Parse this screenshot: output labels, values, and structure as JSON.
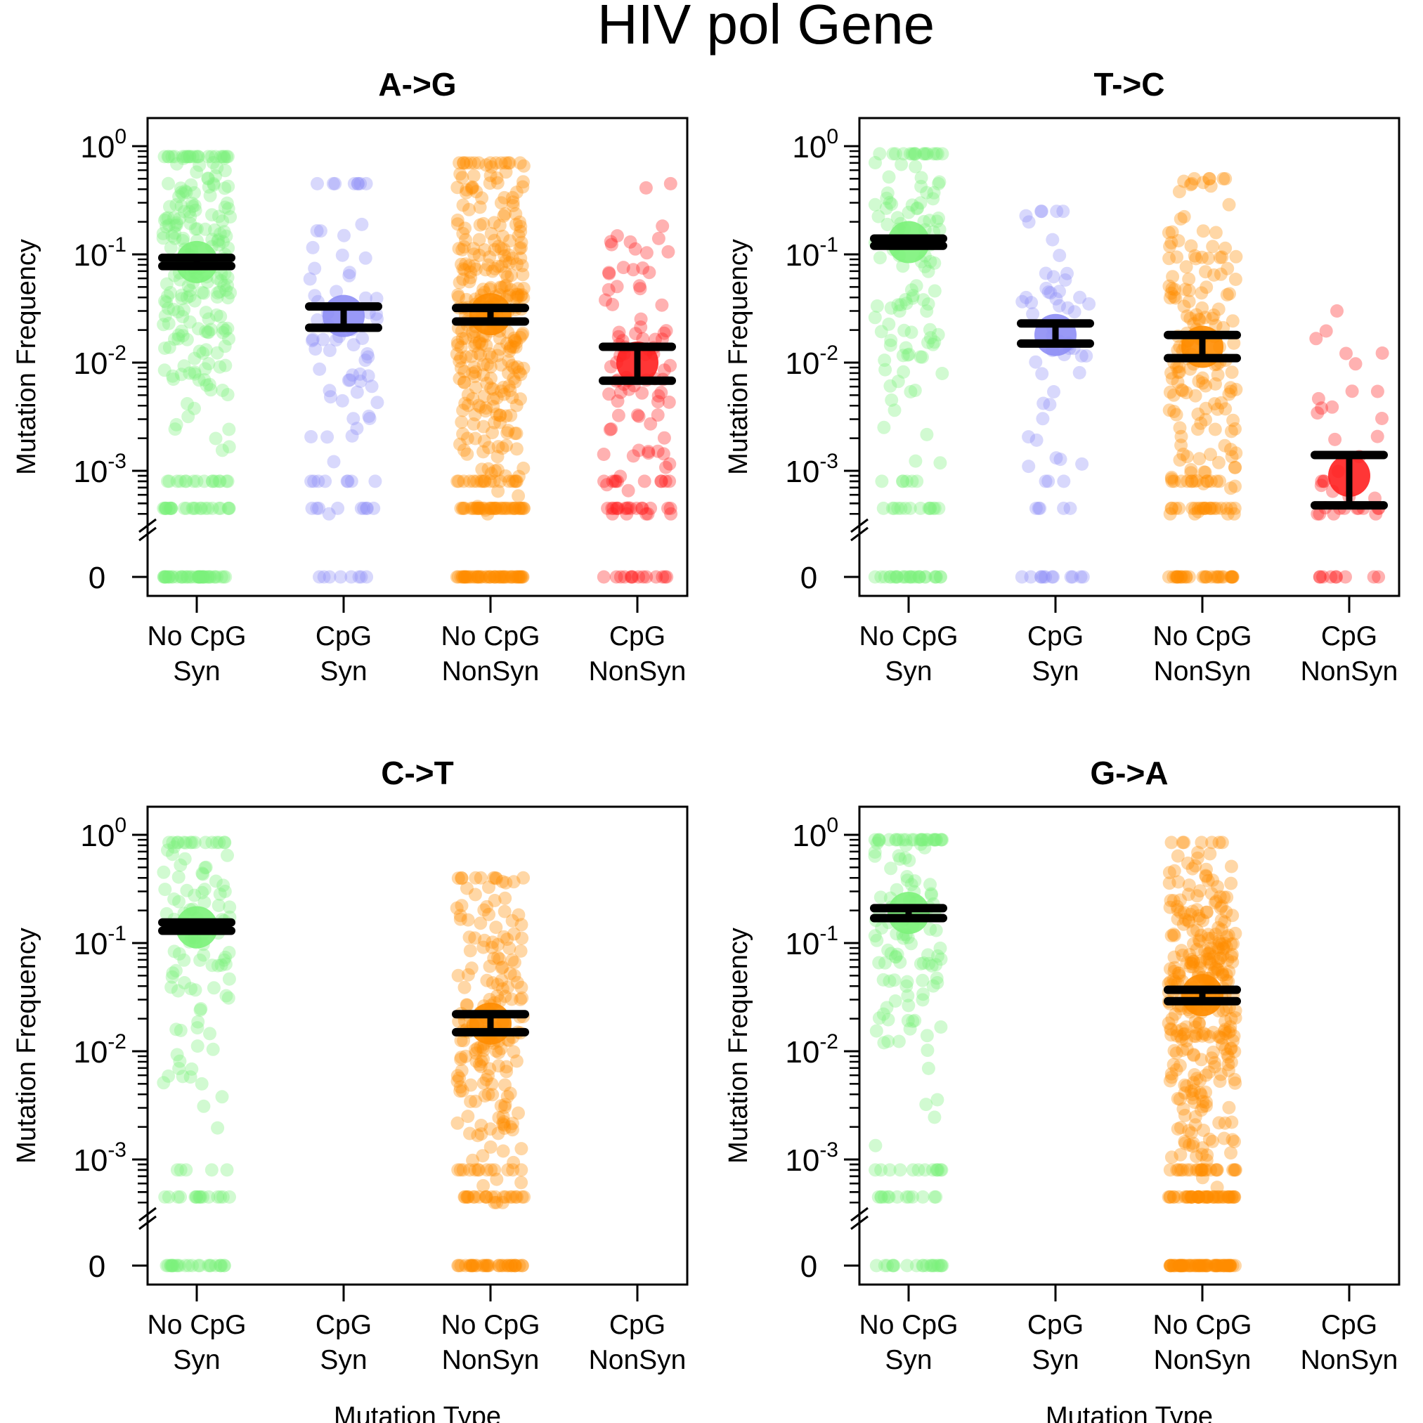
{
  "figure": {
    "title": "HIV pol Gene",
    "zero_label": "0"
  },
  "colors": {
    "no_cpg_syn": "#7CF27A",
    "cpg_syn": "#8E8EF5",
    "no_cpg_nonsyn": "#FF8C00",
    "cpg_nonsyn": "#FF2020",
    "error_bar": "#000000"
  },
  "chart_data": [
    {
      "type": "scatter",
      "title": "A->G",
      "xlabel": "",
      "ylabel": "Mutation Frequency",
      "y_scale": "log",
      "ylim": [
        0.0002,
        1
      ],
      "y_ticks": [
        {
          "base": "10",
          "exp": "0"
        },
        {
          "base": "10",
          "exp": "-1"
        },
        {
          "base": "10",
          "exp": "-2"
        },
        {
          "base": "10",
          "exp": "-3"
        }
      ],
      "categories": [
        {
          "line1": "No CpG",
          "line2": "Syn"
        },
        {
          "line1": "CpG",
          "line2": "Syn"
        },
        {
          "line1": "No CpG",
          "line2": "NonSyn"
        },
        {
          "line1": "CpG",
          "line2": "NonSyn"
        }
      ],
      "series": [
        {
          "mean": 0.085,
          "ci": [
            0.078,
            0.093
          ],
          "n": 300,
          "spread": [
            0.0004,
            0.8
          ]
        },
        {
          "mean": 0.027,
          "ci": [
            0.021,
            0.033
          ],
          "n": 90,
          "spread": [
            0.0004,
            0.45
          ]
        },
        {
          "mean": 0.028,
          "ci": [
            0.024,
            0.032
          ],
          "n": 420,
          "spread": [
            0.0004,
            0.7
          ]
        },
        {
          "mean": 0.01,
          "ci": [
            0.0068,
            0.014
          ],
          "n": 130,
          "spread": [
            0.0004,
            0.45
          ]
        }
      ]
    },
    {
      "type": "scatter",
      "title": "T->C",
      "xlabel": "",
      "ylabel": "Mutation Frequency",
      "y_scale": "log",
      "ylim": [
        0.0002,
        1
      ],
      "y_ticks": [
        {
          "base": "10",
          "exp": "0"
        },
        {
          "base": "10",
          "exp": "-1"
        },
        {
          "base": "10",
          "exp": "-2"
        },
        {
          "base": "10",
          "exp": "-3"
        }
      ],
      "categories": [
        {
          "line1": "No CpG",
          "line2": "Syn"
        },
        {
          "line1": "CpG",
          "line2": "Syn"
        },
        {
          "line1": "No CpG",
          "line2": "NonSyn"
        },
        {
          "line1": "CpG",
          "line2": "NonSyn"
        }
      ],
      "series": [
        {
          "mean": 0.13,
          "ci": [
            0.12,
            0.14
          ],
          "n": 160,
          "spread": [
            0.0004,
            0.85
          ]
        },
        {
          "mean": 0.018,
          "ci": [
            0.015,
            0.023
          ],
          "n": 70,
          "spread": [
            0.0004,
            0.25
          ]
        },
        {
          "mean": 0.014,
          "ci": [
            0.011,
            0.018
          ],
          "n": 230,
          "spread": [
            0.0004,
            0.5
          ]
        },
        {
          "mean": 0.0009,
          "ci": [
            0.00048,
            0.0014
          ],
          "n": 45,
          "spread": [
            0.0004,
            0.03
          ]
        }
      ]
    },
    {
      "type": "scatter",
      "title": "C->T",
      "xlabel": "Mutation Type",
      "ylabel": "Mutation Frequency",
      "y_scale": "log",
      "ylim": [
        0.0002,
        1
      ],
      "y_ticks": [
        {
          "base": "10",
          "exp": "0"
        },
        {
          "base": "10",
          "exp": "-1"
        },
        {
          "base": "10",
          "exp": "-2"
        },
        {
          "base": "10",
          "exp": "-3"
        }
      ],
      "categories": [
        {
          "line1": "No CpG",
          "line2": "Syn"
        },
        {
          "line1": "CpG",
          "line2": "Syn"
        },
        {
          "line1": "No CpG",
          "line2": "NonSyn"
        },
        {
          "line1": "CpG",
          "line2": "NonSyn"
        }
      ],
      "series": [
        {
          "mean": 0.14,
          "ci": [
            0.13,
            0.155
          ],
          "n": 150,
          "spread": [
            0.0004,
            0.85
          ]
        },
        {
          "mean": null,
          "ci": null,
          "n": 0,
          "spread": null
        },
        {
          "mean": 0.018,
          "ci": [
            0.015,
            0.022
          ],
          "n": 260,
          "spread": [
            0.0004,
            0.4
          ]
        },
        {
          "mean": null,
          "ci": null,
          "n": 0,
          "spread": null
        }
      ]
    },
    {
      "type": "scatter",
      "title": "G->A",
      "xlabel": "Mutation Type",
      "ylabel": "Mutation Frequency",
      "y_scale": "log",
      "ylim": [
        0.0002,
        1
      ],
      "y_ticks": [
        {
          "base": "10",
          "exp": "0"
        },
        {
          "base": "10",
          "exp": "-1"
        },
        {
          "base": "10",
          "exp": "-2"
        },
        {
          "base": "10",
          "exp": "-3"
        }
      ],
      "categories": [
        {
          "line1": "No CpG",
          "line2": "Syn"
        },
        {
          "line1": "CpG",
          "line2": "Syn"
        },
        {
          "line1": "No CpG",
          "line2": "NonSyn"
        },
        {
          "line1": "CpG",
          "line2": "NonSyn"
        }
      ],
      "series": [
        {
          "mean": 0.19,
          "ci": [
            0.17,
            0.21
          ],
          "n": 170,
          "spread": [
            0.0004,
            0.9
          ]
        },
        {
          "mean": null,
          "ci": null,
          "n": 0,
          "spread": null
        },
        {
          "mean": 0.033,
          "ci": [
            0.029,
            0.037
          ],
          "n": 460,
          "spread": [
            0.0004,
            0.85
          ]
        },
        {
          "mean": null,
          "ci": null,
          "n": 0,
          "spread": null
        }
      ]
    }
  ]
}
